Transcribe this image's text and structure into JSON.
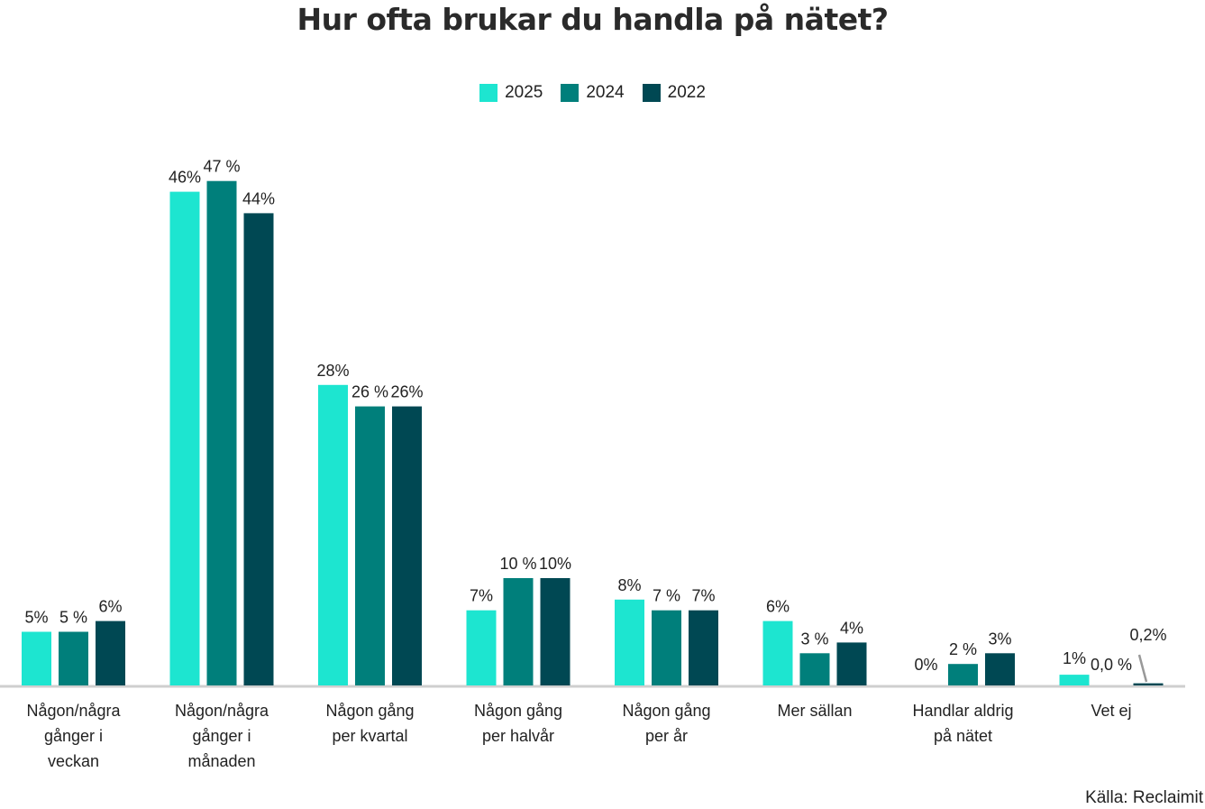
{
  "title": "Hur ofta brukar du handla på nätet?",
  "source": "Källa: Reclaimit",
  "colors": {
    "2025": "#1de5d0",
    "2024": "#007f7b",
    "2022": "#004853",
    "axis": "#cfcfcf",
    "leader": "#999999"
  },
  "legend": [
    {
      "label": "2025",
      "color_key": "2025"
    },
    {
      "label": "2024",
      "color_key": "2024"
    },
    {
      "label": "2022",
      "color_key": "2022"
    }
  ],
  "chart_data": {
    "type": "bar",
    "categories": [
      [
        "Någon/några",
        "gånger i",
        "veckan"
      ],
      [
        "Någon/några",
        "gånger i",
        "månaden"
      ],
      [
        "Någon gång",
        "per kvartal"
      ],
      [
        "Någon gång",
        "per halvår"
      ],
      [
        "Någon gång",
        "per år"
      ],
      [
        "Mer sällan"
      ],
      [
        "Handlar aldrig",
        "på nätet"
      ],
      [
        "Vet ej"
      ]
    ],
    "series": [
      {
        "name": "2025",
        "values": [
          5,
          46,
          28,
          7,
          8,
          6,
          0,
          1
        ],
        "labels": [
          "5%",
          "46%",
          "28%",
          "7%",
          "8%",
          "6%",
          "0%",
          "1%"
        ]
      },
      {
        "name": "2024",
        "values": [
          5,
          47,
          26,
          10,
          7,
          3,
          2,
          0
        ],
        "labels": [
          "5 %",
          "47 %",
          "26 %",
          "10 %",
          "7 %",
          "3 %",
          "2 %",
          "0,0 %"
        ]
      },
      {
        "name": "2022",
        "values": [
          6,
          44,
          26,
          10,
          7,
          4,
          3,
          0.2
        ],
        "labels": [
          "6%",
          "44%",
          "26%",
          "10%",
          "7%",
          "4%",
          "3%",
          "0,2%"
        ]
      }
    ],
    "ylim": [
      0,
      50
    ],
    "grid": false,
    "legend_position": "top-center"
  }
}
